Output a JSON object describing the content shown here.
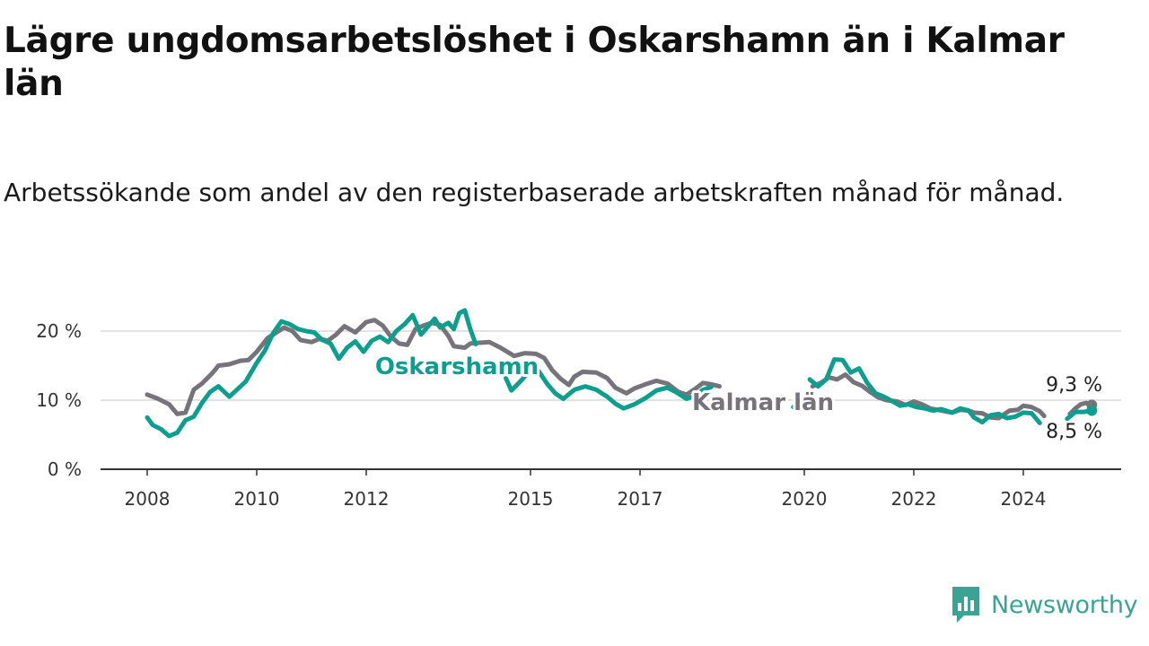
{
  "chart_data": {
    "type": "line",
    "title": "Lägre ungdomsarbetslöshet i Oskarshamn än i Kalmar län",
    "subtitle": "Arbetssökande som andel av den registerbaserade arbetskraften månad för månad.",
    "xlabel": "",
    "ylabel": "",
    "ylim": [
      0,
      20
    ],
    "xlim": [
      2008,
      2025.3
    ],
    "y_ticks": [
      0,
      10,
      20
    ],
    "y_tick_labels": [
      "0 %",
      "10 %",
      "20 %"
    ],
    "x_ticks": [
      2008,
      2010,
      2012,
      2015,
      2017,
      2020,
      2022,
      2024
    ],
    "x_tick_labels": [
      "2008",
      "2010",
      "2012",
      "2015",
      "2017",
      "2020",
      "2022",
      "2024"
    ],
    "grid": true,
    "legend": "inline labels",
    "series": [
      {
        "name": "Kalmar län",
        "color": "#76747a",
        "segments": [
          [
            [
              2008.0,
              10.8
            ],
            [
              2008.2,
              10.2
            ],
            [
              2008.4,
              9.4
            ],
            [
              2008.55,
              8.0
            ],
            [
              2008.7,
              8.2
            ],
            [
              2008.85,
              11.5
            ],
            [
              2009.0,
              12.4
            ],
            [
              2009.2,
              14.0
            ],
            [
              2009.3,
              15.0
            ],
            [
              2009.5,
              15.2
            ],
            [
              2009.7,
              15.7
            ],
            [
              2009.85,
              15.8
            ],
            [
              2010.0,
              17.0
            ],
            [
              2010.2,
              19.0
            ],
            [
              2010.4,
              20.0
            ],
            [
              2010.5,
              20.5
            ],
            [
              2010.65,
              20.0
            ],
            [
              2010.8,
              18.7
            ],
            [
              2011.0,
              18.4
            ],
            [
              2011.15,
              18.9
            ],
            [
              2011.3,
              18.6
            ],
            [
              2011.45,
              19.5
            ],
            [
              2011.6,
              20.7
            ],
            [
              2011.8,
              19.8
            ],
            [
              2012.0,
              21.3
            ],
            [
              2012.15,
              21.6
            ],
            [
              2012.3,
              20.8
            ],
            [
              2012.45,
              19.2
            ],
            [
              2012.6,
              18.2
            ],
            [
              2012.75,
              18.0
            ],
            [
              2012.9,
              20.3
            ],
            [
              2013.05,
              20.8
            ],
            [
              2013.2,
              21.2
            ],
            [
              2013.35,
              20.9
            ],
            [
              2013.5,
              19.3
            ],
            [
              2013.6,
              17.8
            ],
            [
              2013.8,
              17.6
            ],
            [
              2013.9,
              18.2
            ],
            [
              2014.05,
              18.3
            ],
            [
              2014.25,
              18.4
            ],
            [
              2014.45,
              17.6
            ],
            [
              2014.7,
              16.4
            ],
            [
              2014.9,
              16.8
            ],
            [
              2015.1,
              16.7
            ],
            [
              2015.25,
              16.1
            ],
            [
              2015.4,
              14.3
            ],
            [
              2015.55,
              13.1
            ],
            [
              2015.7,
              12.2
            ],
            [
              2015.8,
              13.4
            ],
            [
              2015.95,
              14.1
            ],
            [
              2016.2,
              14.0
            ],
            [
              2016.4,
              13.2
            ],
            [
              2016.55,
              11.8
            ],
            [
              2016.75,
              11.0
            ],
            [
              2016.9,
              11.7
            ],
            [
              2017.1,
              12.3
            ],
            [
              2017.3,
              12.8
            ],
            [
              2017.5,
              12.4
            ],
            [
              2017.7,
              11.2
            ],
            [
              2017.85,
              10.8
            ],
            [
              2018.0,
              11.6
            ],
            [
              2018.15,
              12.5
            ],
            [
              2018.3,
              12.3
            ],
            [
              2018.45,
              12.0
            ]
          ],
          [
            [
              2020.15,
              12.0
            ],
            [
              2020.3,
              12.5
            ],
            [
              2020.45,
              13.3
            ],
            [
              2020.6,
              13.0
            ],
            [
              2020.75,
              13.7
            ],
            [
              2020.9,
              12.6
            ],
            [
              2021.05,
              12.1
            ],
            [
              2021.2,
              11.2
            ],
            [
              2021.35,
              10.4
            ],
            [
              2021.5,
              10.0
            ],
            [
              2021.7,
              9.8
            ],
            [
              2021.85,
              9.3
            ],
            [
              2022.0,
              9.8
            ],
            [
              2022.15,
              9.4
            ],
            [
              2022.3,
              8.8
            ],
            [
              2022.5,
              8.5
            ],
            [
              2022.7,
              8.2
            ],
            [
              2022.85,
              8.6
            ],
            [
              2023.0,
              8.5
            ],
            [
              2023.1,
              8.2
            ],
            [
              2023.25,
              8.1
            ],
            [
              2023.4,
              7.5
            ],
            [
              2023.55,
              7.4
            ],
            [
              2023.75,
              8.5
            ],
            [
              2023.9,
              8.6
            ],
            [
              2024.0,
              9.2
            ],
            [
              2024.15,
              9.0
            ],
            [
              2024.3,
              8.4
            ],
            [
              2024.38,
              7.7
            ]
          ],
          [
            [
              2024.85,
              8.0
            ],
            [
              2024.95,
              8.8
            ],
            [
              2025.05,
              9.4
            ],
            [
              2025.15,
              9.6
            ],
            [
              2025.25,
              9.3
            ]
          ]
        ]
      },
      {
        "name": "Oskarshamn",
        "color": "#0e9e8e",
        "segments": [
          [
            [
              2008.0,
              7.5
            ],
            [
              2008.1,
              6.4
            ],
            [
              2008.25,
              5.8
            ],
            [
              2008.4,
              4.8
            ],
            [
              2008.55,
              5.3
            ],
            [
              2008.7,
              7.1
            ],
            [
              2008.85,
              7.6
            ],
            [
              2009.0,
              9.6
            ],
            [
              2009.15,
              11.2
            ],
            [
              2009.3,
              12.0
            ],
            [
              2009.5,
              10.5
            ],
            [
              2009.65,
              11.6
            ],
            [
              2009.8,
              12.7
            ],
            [
              2010.0,
              15.4
            ],
            [
              2010.15,
              17.2
            ],
            [
              2010.3,
              19.7
            ],
            [
              2010.45,
              21.4
            ],
            [
              2010.6,
              21.0
            ],
            [
              2010.75,
              20.3
            ],
            [
              2010.9,
              20.0
            ],
            [
              2011.05,
              19.8
            ],
            [
              2011.2,
              18.7
            ],
            [
              2011.35,
              18.2
            ],
            [
              2011.5,
              16.0
            ],
            [
              2011.65,
              17.6
            ],
            [
              2011.8,
              18.5
            ],
            [
              2011.95,
              17.0
            ],
            [
              2012.1,
              18.6
            ],
            [
              2012.25,
              19.2
            ],
            [
              2012.4,
              18.4
            ],
            [
              2012.55,
              20.0
            ],
            [
              2012.7,
              21.0
            ],
            [
              2012.85,
              22.3
            ],
            [
              2013.0,
              19.5
            ],
            [
              2013.1,
              20.4
            ],
            [
              2013.25,
              21.8
            ],
            [
              2013.35,
              20.5
            ],
            [
              2013.5,
              21.2
            ],
            [
              2013.6,
              20.3
            ],
            [
              2013.7,
              22.6
            ],
            [
              2013.8,
              23.0
            ],
            [
              2013.9,
              20.3
            ],
            [
              2014.0,
              18.1
            ]
          ],
          [
            [
              2014.55,
              13.2
            ],
            [
              2014.65,
              11.4
            ],
            [
              2014.85,
              13.0
            ],
            [
              2015.0,
              14.5
            ],
            [
              2015.15,
              14.2
            ],
            [
              2015.3,
              12.4
            ],
            [
              2015.45,
              11.0
            ],
            [
              2015.6,
              10.2
            ],
            [
              2015.8,
              11.5
            ],
            [
              2016.0,
              12.0
            ],
            [
              2016.2,
              11.5
            ],
            [
              2016.4,
              10.5
            ],
            [
              2016.55,
              9.5
            ],
            [
              2016.7,
              8.8
            ],
            [
              2016.9,
              9.4
            ],
            [
              2017.1,
              10.3
            ],
            [
              2017.3,
              11.4
            ],
            [
              2017.5,
              11.8
            ],
            [
              2017.65,
              11.2
            ],
            [
              2017.85,
              10.2
            ],
            [
              2018.0,
              10.6
            ],
            [
              2018.15,
              11.5
            ],
            [
              2018.3,
              11.9
            ]
          ],
          [
            [
              2019.8,
              9.0
            ],
            [
              2019.9,
              9.8
            ]
          ],
          [
            [
              2020.1,
              13.0
            ],
            [
              2020.25,
              12.0
            ],
            [
              2020.4,
              13.0
            ],
            [
              2020.55,
              15.9
            ],
            [
              2020.7,
              15.8
            ],
            [
              2020.85,
              14.0
            ],
            [
              2021.0,
              14.6
            ],
            [
              2021.15,
              12.5
            ],
            [
              2021.3,
              11.0
            ],
            [
              2021.45,
              10.5
            ],
            [
              2021.6,
              9.9
            ],
            [
              2021.75,
              9.2
            ],
            [
              2021.9,
              9.4
            ],
            [
              2022.05,
              9.0
            ],
            [
              2022.2,
              8.8
            ],
            [
              2022.35,
              8.5
            ],
            [
              2022.5,
              8.7
            ],
            [
              2022.7,
              8.2
            ],
            [
              2022.85,
              8.8
            ],
            [
              2023.0,
              8.5
            ],
            [
              2023.1,
              7.5
            ],
            [
              2023.25,
              6.8
            ],
            [
              2023.4,
              7.8
            ],
            [
              2023.55,
              8.0
            ],
            [
              2023.7,
              7.4
            ],
            [
              2023.85,
              7.6
            ],
            [
              2024.0,
              8.2
            ],
            [
              2024.15,
              8.1
            ],
            [
              2024.3,
              6.7
            ]
          ],
          [
            [
              2024.8,
              7.3
            ],
            [
              2024.95,
              8.3
            ],
            [
              2025.1,
              8.3
            ],
            [
              2025.25,
              8.5
            ]
          ]
        ]
      }
    ],
    "annotations": [
      {
        "text": "Oskarshamn",
        "series": "Oskarshamn",
        "x": 2014.0,
        "y": 15.0
      },
      {
        "text": "Kalmar län",
        "series": "Kalmar län",
        "x": 2019.2,
        "y": 9.5
      },
      {
        "text": "9,3 %",
        "x": 2025.25,
        "y": 9.3
      },
      {
        "text": "8,5 %",
        "x": 2025.25,
        "y": 8.5
      }
    ]
  },
  "brand": {
    "name": "Newsworthy",
    "color": "#3aa394",
    "icon": "newsworthy-logo-icon"
  }
}
